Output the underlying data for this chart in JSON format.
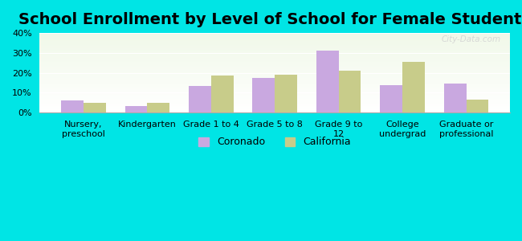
{
  "title": "School Enrollment by Level of School for Female Students",
  "categories": [
    "Nursery,\npreschool",
    "Kindergarten",
    "Grade 1 to 4",
    "Grade 5 to 8",
    "Grade 9 to\n12",
    "College\nundergrad",
    "Graduate or\nprofessional"
  ],
  "coronado": [
    6.0,
    3.5,
    13.5,
    17.5,
    31.0,
    14.0,
    14.5
  ],
  "california": [
    5.0,
    5.0,
    18.5,
    19.0,
    21.0,
    25.5,
    6.5
  ],
  "coronado_color": "#c9a8e0",
  "california_color": "#c8cc8a",
  "background_color": "#00e5e5",
  "ylim": [
    0,
    40
  ],
  "yticks": [
    0,
    10,
    20,
    30,
    40
  ],
  "ytick_labels": [
    "0%",
    "10%",
    "20%",
    "30%",
    "40%"
  ],
  "bar_width": 0.35,
  "title_fontsize": 14,
  "tick_fontsize": 8,
  "legend_fontsize": 9,
  "watermark": "City-Data.com",
  "legend_labels": [
    "Coronado",
    "California"
  ]
}
